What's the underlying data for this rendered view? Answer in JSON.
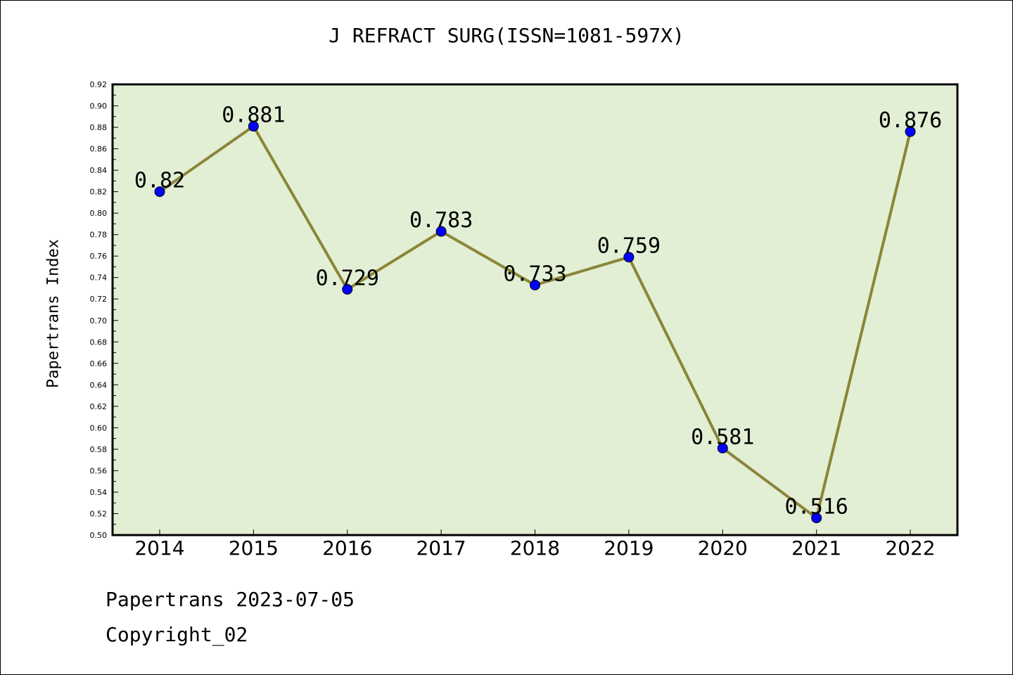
{
  "chart_data": {
    "type": "line",
    "title": "J REFRACT SURG(ISSN=1081-597X)",
    "xlabel": "",
    "ylabel": "Papertrans Index",
    "categories": [
      "2014",
      "2015",
      "2016",
      "2017",
      "2018",
      "2019",
      "2020",
      "2021",
      "2022"
    ],
    "values": [
      0.82,
      0.881,
      0.729,
      0.783,
      0.733,
      0.759,
      0.581,
      0.516,
      0.876
    ],
    "data_labels": [
      "0.82",
      "0.881",
      "0.729",
      "0.783",
      "0.733",
      "0.759",
      "0.581",
      "0.516",
      "0.876"
    ],
    "ylim": [
      0.5,
      0.92
    ],
    "yticks": [
      "0.50",
      "0.52",
      "0.54",
      "0.56",
      "0.58",
      "0.60",
      "0.62",
      "0.64",
      "0.66",
      "0.68",
      "0.70",
      "0.72",
      "0.74",
      "0.76",
      "0.78",
      "0.80",
      "0.82",
      "0.84",
      "0.86",
      "0.88",
      "0.90",
      "0.92"
    ],
    "grid": false,
    "legend": "none",
    "colors": {
      "plot_background": "#e2efd5",
      "line": "#8b8538",
      "marker": "#0000ff"
    }
  },
  "footer": {
    "date_text": "Papertrans 2023-07-05",
    "copyright_text": "Copyright_02"
  }
}
